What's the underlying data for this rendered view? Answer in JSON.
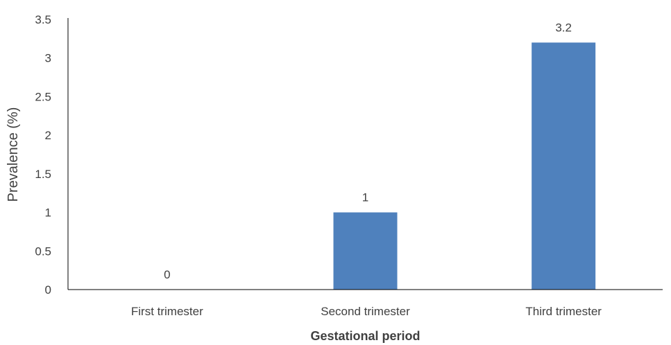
{
  "chart_data": {
    "type": "bar",
    "title": "",
    "xlabel": "Gestational period",
    "ylabel": "Prevalence (%)",
    "categories": [
      "First trimester",
      "Second trimester",
      "Third trimester"
    ],
    "values": [
      0,
      1,
      3.2
    ],
    "data_labels": [
      "0",
      "1",
      "3.2"
    ],
    "ylim": [
      0,
      3.5
    ],
    "y_ticks": [
      0,
      0.5,
      1,
      1.5,
      2,
      2.5,
      3,
      3.5
    ],
    "y_tick_labels": [
      "0",
      "0.5",
      "1",
      "1.5",
      "2",
      "2.5",
      "3",
      "3.5"
    ],
    "grid": false,
    "legend": "none",
    "bar_color": "#4f81bd",
    "axis_color": "#000000"
  }
}
